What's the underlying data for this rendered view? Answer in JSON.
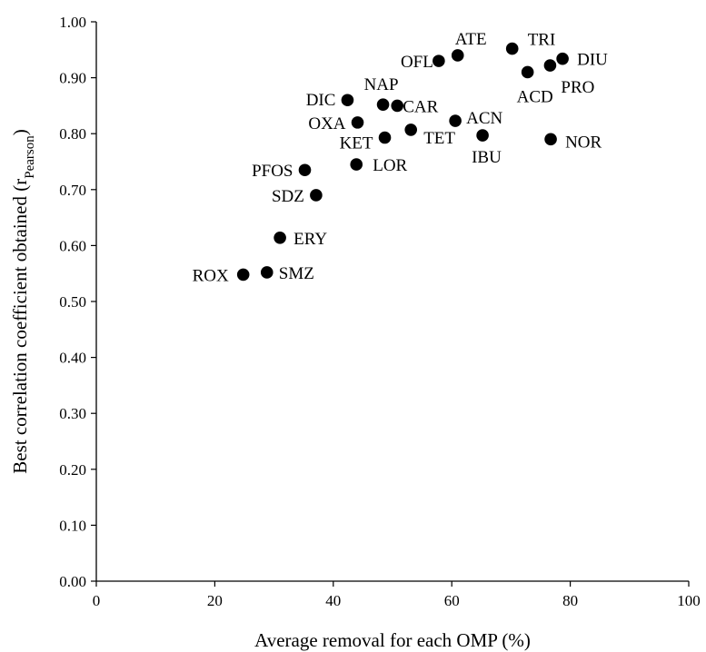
{
  "chart_data": {
    "type": "scatter",
    "title": "",
    "xlabel": "Average removal for each OMP (%)",
    "ylabel_main": "Best correlation coefficient obtained (r",
    "ylabel_sub": "Pearson",
    "ylabel_end": ")",
    "xlim": [
      0,
      100
    ],
    "ylim": [
      0,
      1
    ],
    "x_ticks": [
      0,
      20,
      40,
      60,
      80,
      100
    ],
    "x_tick_labels": [
      "0",
      "20",
      "40",
      "60",
      "80",
      "100"
    ],
    "y_ticks": [
      0,
      0.1,
      0.2,
      0.3,
      0.4,
      0.5,
      0.6,
      0.7,
      0.8,
      0.9,
      1.0
    ],
    "y_tick_labels": [
      "0.00",
      "0.10",
      "0.20",
      "0.30",
      "0.40",
      "0.50",
      "0.60",
      "0.70",
      "0.80",
      "0.90",
      "1.00"
    ],
    "grid": false,
    "legend": "none",
    "marker_color": "#000000",
    "points": [
      {
        "label": "ROX",
        "x": 24.8,
        "y": 0.548
      },
      {
        "label": "SMZ",
        "x": 28.8,
        "y": 0.552
      },
      {
        "label": "ERY",
        "x": 31.0,
        "y": 0.614
      },
      {
        "label": "SDZ",
        "x": 37.1,
        "y": 0.69
      },
      {
        "label": "PFOS",
        "x": 35.2,
        "y": 0.735
      },
      {
        "label": "LOR",
        "x": 43.9,
        "y": 0.745
      },
      {
        "label": "DIC",
        "x": 42.4,
        "y": 0.86
      },
      {
        "label": "OXA",
        "x": 44.1,
        "y": 0.82
      },
      {
        "label": "KET",
        "x": 48.7,
        "y": 0.793
      },
      {
        "label": "NAP",
        "x": 48.4,
        "y": 0.852
      },
      {
        "label": "CAR",
        "x": 50.8,
        "y": 0.85
      },
      {
        "label": "TET",
        "x": 53.1,
        "y": 0.807
      },
      {
        "label": "OFL",
        "x": 57.8,
        "y": 0.93
      },
      {
        "label": "ATE",
        "x": 61.0,
        "y": 0.94
      },
      {
        "label": "ACN",
        "x": 60.6,
        "y": 0.823
      },
      {
        "label": "IBU",
        "x": 65.2,
        "y": 0.797
      },
      {
        "label": "TRI",
        "x": 70.2,
        "y": 0.952
      },
      {
        "label": "ACD",
        "x": 72.8,
        "y": 0.91
      },
      {
        "label": "PRO",
        "x": 76.6,
        "y": 0.922
      },
      {
        "label": "DIU",
        "x": 78.7,
        "y": 0.934
      },
      {
        "label": "NOR",
        "x": 76.7,
        "y": 0.79
      }
    ]
  }
}
